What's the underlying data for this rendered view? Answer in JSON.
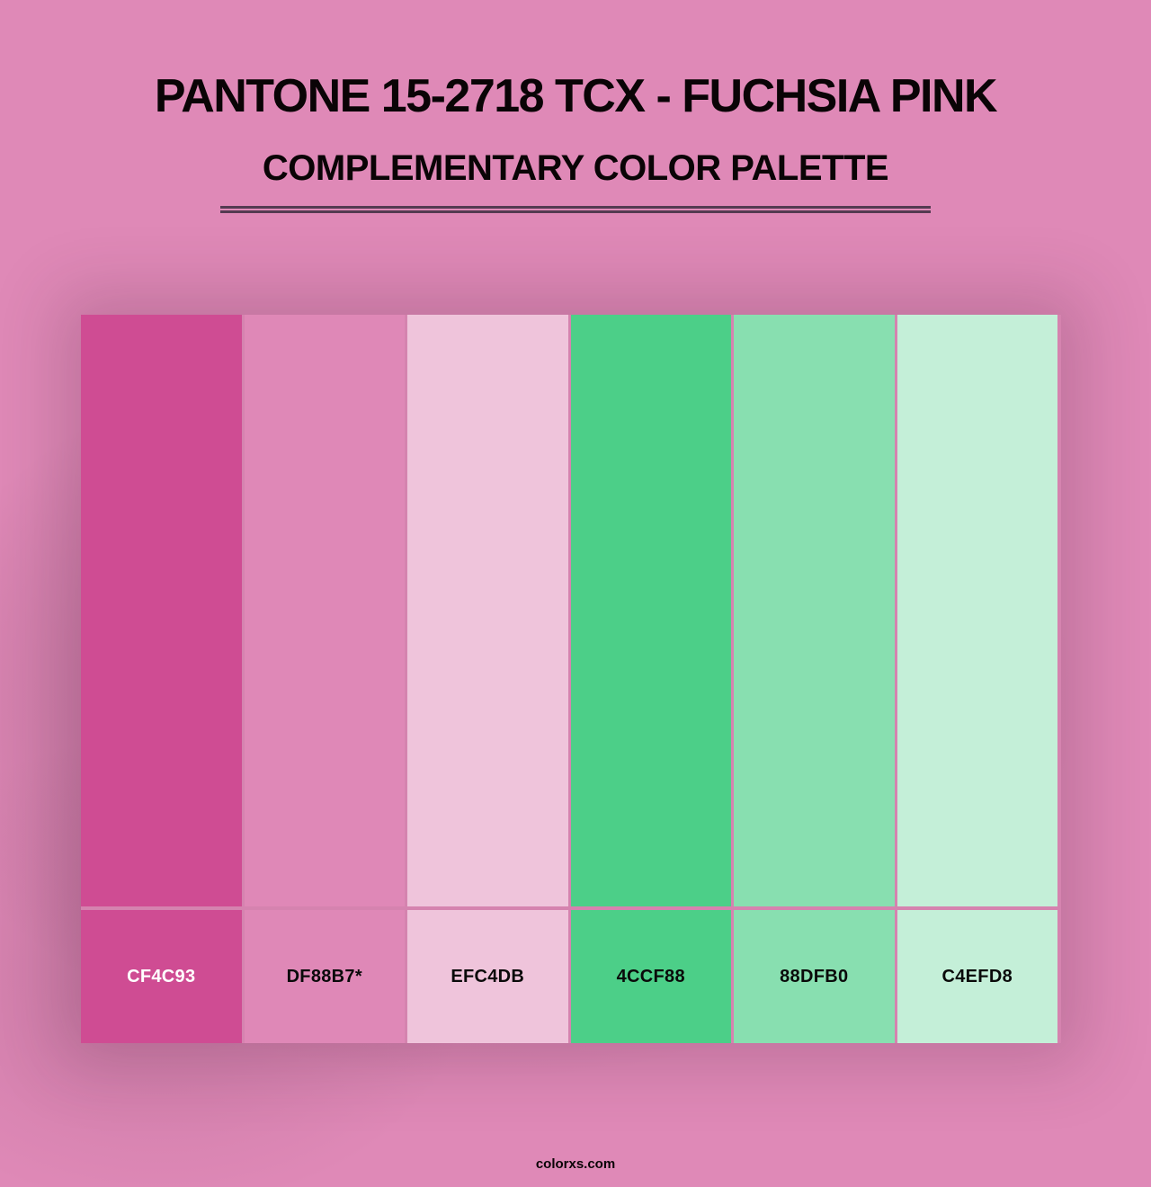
{
  "header": {
    "title": "PANTONE 15-2718 TCX - FUCHSIA PINK",
    "subtitle": "COMPLEMENTARY COLOR PALETTE"
  },
  "palette": {
    "swatches": [
      {
        "hex_label": "CF4C93",
        "color": "#CF4C93",
        "label_color": "#FFFFFF"
      },
      {
        "hex_label": "DF88B7*",
        "color": "#DF88B7",
        "label_color": "#0A0A0A"
      },
      {
        "hex_label": "EFC4DB",
        "color": "#EFC4DB",
        "label_color": "#0A0A0A"
      },
      {
        "hex_label": "4CCF88",
        "color": "#4CCF88",
        "label_color": "#0A0A0A"
      },
      {
        "hex_label": "88DFB0",
        "color": "#88DFB0",
        "label_color": "#0A0A0A"
      },
      {
        "hex_label": "C4EFD8",
        "color": "#C4EFD8",
        "label_color": "#0A0A0A"
      }
    ]
  },
  "footer": {
    "site": "colorxs.com"
  },
  "colors": {
    "background": "#DF89B7",
    "title_text": "#0A0406",
    "divider": "#543B51",
    "grid_lines": "#D583AF"
  }
}
